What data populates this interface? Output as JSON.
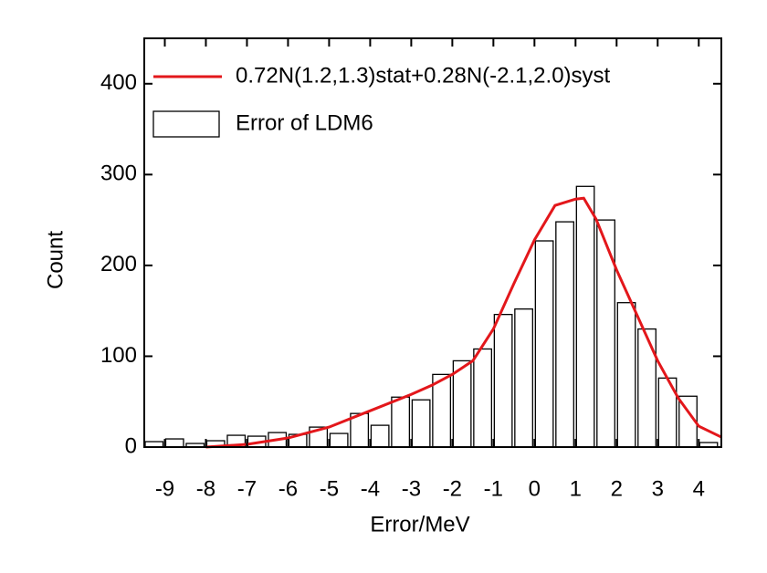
{
  "chart_data": [
    {
      "type": "histogram",
      "name": "Error of LDM6",
      "color": "#ffffff",
      "x_label": "Error/MeV",
      "y_label": "Count",
      "bins": [
        -9.5,
        -9,
        -8.5,
        -8,
        -7.5,
        -7,
        -6.5,
        -6,
        -5.5,
        -5,
        -4.5,
        -4,
        -3.5,
        -3,
        -2.5,
        -2,
        -1.5,
        -1,
        -0.5,
        0,
        0.5,
        1,
        1.5,
        2,
        2.5,
        3,
        3.5,
        4,
        4.5
      ],
      "counts": [
        6,
        9,
        4,
        7,
        13,
        12,
        16,
        14,
        22,
        15,
        37,
        24,
        55,
        52,
        80,
        95,
        108,
        146,
        152,
        227,
        248,
        287,
        250,
        159,
        130,
        76,
        56,
        5
      ],
      "xlim": [
        -9.5,
        4.55
      ],
      "ylim": [
        0,
        450
      ],
      "xticks": [
        -9,
        -8,
        -7,
        -6,
        -5,
        -4,
        -3,
        -2,
        -1,
        0,
        1,
        2,
        3,
        4
      ],
      "yticks": [
        0,
        100,
        200,
        300,
        400
      ],
      "legend": "upper left"
    },
    {
      "type": "line",
      "name": "0.72N(1.2,1.3)stat+0.28N(-2.1,2.0)syst",
      "color": "#e3171b",
      "x": [
        -8,
        -7,
        -6,
        -5,
        -4,
        -3,
        -2.5,
        -2,
        -1.5,
        -1,
        -0.5,
        0,
        0.5,
        1,
        1.2,
        1.5,
        2,
        2.5,
        3,
        3.5,
        4,
        4.55
      ],
      "values": [
        0,
        3,
        10,
        22,
        40,
        58,
        68,
        80,
        95,
        130,
        180,
        228,
        266,
        273,
        274,
        251,
        195,
        145,
        95,
        54,
        23,
        11
      ]
    }
  ]
}
